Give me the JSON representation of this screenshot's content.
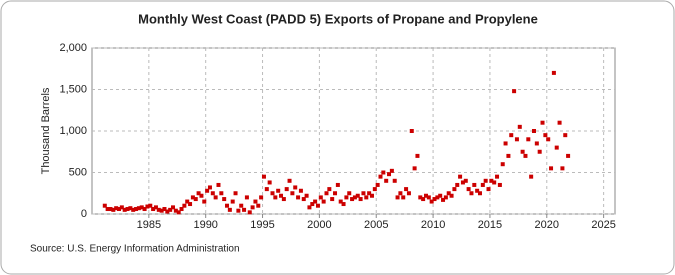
{
  "chart_data": {
    "type": "scatter",
    "title": "Monthly West Coast (PADD 5) Exports of Propane and Propylene",
    "y_label": "Thousand Barrels",
    "source": "Source: U.S. Energy Information Administration",
    "color": "#cc0000",
    "grid": true,
    "xlim": [
      1980,
      2026
    ],
    "xticks": [
      1985,
      1990,
      1995,
      2000,
      2005,
      2010,
      2015,
      2020,
      2025
    ],
    "ylim": [
      0,
      2000
    ],
    "yticks": [
      0,
      500,
      {
        "value": 1000,
        "label": "1,000"
      },
      {
        "value": 1500,
        "label": "1,500"
      },
      {
        "value": 2000,
        "label": "2,000"
      }
    ],
    "x": [
      1981.125,
      1981.375,
      1981.625,
      1981.875,
      1982.125,
      1982.375,
      1982.625,
      1982.875,
      1983.125,
      1983.375,
      1983.625,
      1983.875,
      1984.125,
      1984.375,
      1984.625,
      1984.875,
      1985.125,
      1985.375,
      1985.625,
      1985.875,
      1986.125,
      1986.375,
      1986.625,
      1986.875,
      1987.125,
      1987.375,
      1987.625,
      1987.875,
      1988.125,
      1988.375,
      1988.625,
      1988.875,
      1989.125,
      1989.375,
      1989.625,
      1989.875,
      1990.125,
      1990.375,
      1990.625,
      1990.875,
      1991.125,
      1991.375,
      1991.625,
      1991.875,
      1992.125,
      1992.375,
      1992.625,
      1992.875,
      1993.125,
      1993.375,
      1993.625,
      1993.875,
      1994.125,
      1994.375,
      1994.625,
      1994.875,
      1995.125,
      1995.375,
      1995.625,
      1995.875,
      1996.125,
      1996.375,
      1996.625,
      1996.875,
      1997.125,
      1997.375,
      1997.625,
      1997.875,
      1998.125,
      1998.375,
      1998.625,
      1998.875,
      1999.125,
      1999.375,
      1999.625,
      1999.875,
      2000.125,
      2000.375,
      2000.625,
      2000.875,
      2001.125,
      2001.375,
      2001.625,
      2001.875,
      2002.125,
      2002.375,
      2002.625,
      2002.875,
      2003.125,
      2003.375,
      2003.625,
      2003.875,
      2004.125,
      2004.375,
      2004.625,
      2004.875,
      2005.125,
      2005.375,
      2005.625,
      2005.875,
      2006.125,
      2006.375,
      2006.625,
      2006.875,
      2007.125,
      2007.375,
      2007.625,
      2007.875,
      2008.125,
      2008.375,
      2008.625,
      2008.875,
      2009.125,
      2009.375,
      2009.625,
      2009.875,
      2010.125,
      2010.375,
      2010.625,
      2010.875,
      2011.125,
      2011.375,
      2011.625,
      2011.875,
      2012.125,
      2012.375,
      2012.625,
      2012.875,
      2013.125,
      2013.375,
      2013.625,
      2013.875,
      2014.125,
      2014.375,
      2014.625,
      2014.875,
      2015.125,
      2015.375,
      2015.625,
      2015.875,
      2016.125,
      2016.375,
      2016.625,
      2016.875,
      2017.125,
      2017.375,
      2017.625,
      2017.875,
      2018.125,
      2018.375,
      2018.625,
      2018.875,
      2019.125,
      2019.375,
      2019.625,
      2019.875,
      2020.125,
      2020.375,
      2020.625,
      2020.875,
      2021.125,
      2021.375,
      2021.625,
      2021.875
    ],
    "values": [
      100,
      60,
      60,
      50,
      70,
      60,
      80,
      50,
      60,
      70,
      50,
      60,
      70,
      80,
      60,
      90,
      100,
      60,
      80,
      50,
      40,
      60,
      30,
      50,
      80,
      40,
      20,
      60,
      100,
      150,
      120,
      200,
      180,
      250,
      220,
      150,
      280,
      320,
      250,
      200,
      350,
      250,
      180,
      100,
      50,
      150,
      250,
      40,
      100,
      50,
      200,
      20,
      80,
      150,
      100,
      200,
      450,
      300,
      380,
      250,
      200,
      280,
      220,
      180,
      300,
      400,
      250,
      320,
      200,
      280,
      180,
      220,
      80,
      120,
      150,
      100,
      200,
      150,
      250,
      300,
      180,
      250,
      350,
      150,
      120,
      200,
      250,
      180,
      200,
      220,
      180,
      250,
      200,
      250,
      220,
      300,
      350,
      450,
      500,
      400,
      480,
      520,
      400,
      200,
      250,
      200,
      300,
      250,
      1000,
      550,
      700,
      200,
      180,
      220,
      200,
      150,
      180,
      200,
      220,
      170,
      200,
      250,
      220,
      300,
      350,
      450,
      380,
      400,
      300,
      250,
      350,
      280,
      250,
      350,
      400,
      300,
      400,
      380,
      450,
      350,
      600,
      850,
      700,
      950,
      1480,
      900,
      1050,
      750,
      700,
      900,
      450,
      1000,
      850,
      750,
      1100,
      950,
      900,
      550,
      1700,
      800,
      1100,
      550,
      950,
      700
    ]
  }
}
